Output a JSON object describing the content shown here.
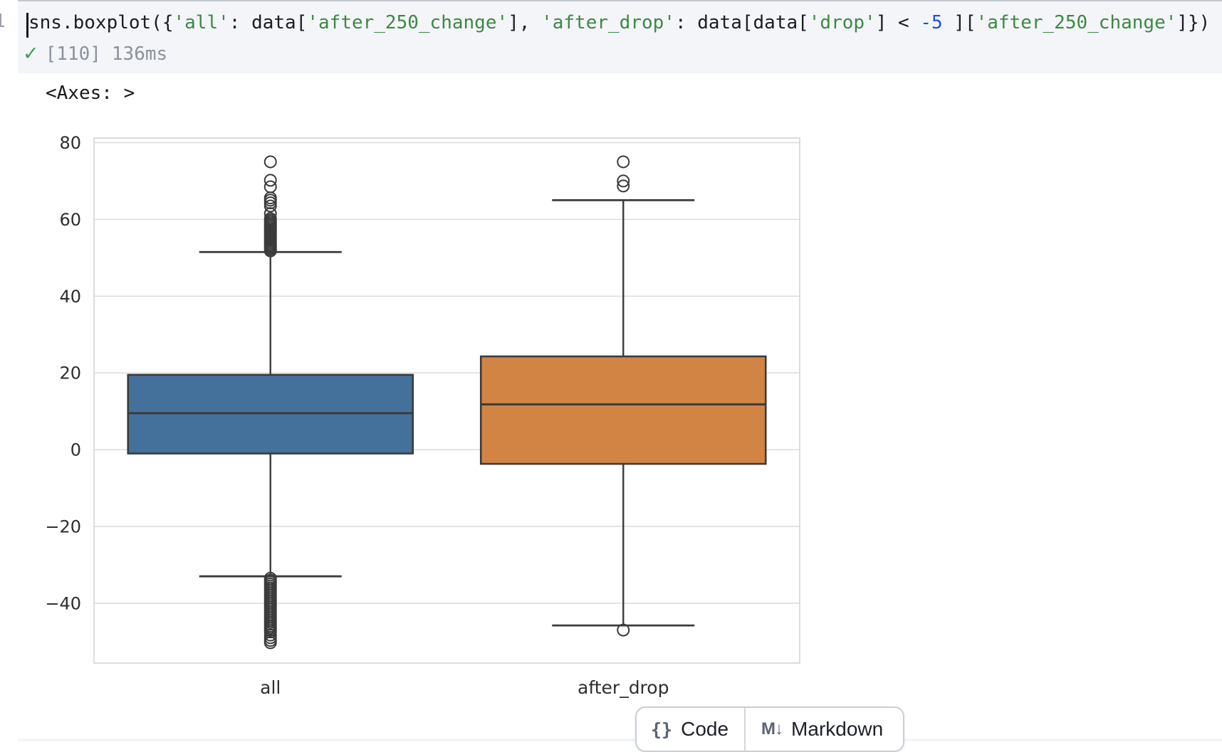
{
  "cell": {
    "line_number": "1",
    "code_tokens": [
      {
        "t": "sns.boxplot({",
        "c": "code"
      },
      {
        "t": "'all'",
        "c": "str"
      },
      {
        "t": ": data[",
        "c": "code"
      },
      {
        "t": "'after_250_change'",
        "c": "str"
      },
      {
        "t": "], ",
        "c": "code"
      },
      {
        "t": "'after_drop'",
        "c": "str"
      },
      {
        "t": ": data[data[",
        "c": "code"
      },
      {
        "t": "'drop'",
        "c": "str"
      },
      {
        "t": "] < ",
        "c": "code"
      },
      {
        "t": "-5",
        "c": "num"
      },
      {
        "t": " ][",
        "c": "code"
      },
      {
        "t": "'after_250_change'",
        "c": "str"
      },
      {
        "t": "]})",
        "c": "code"
      }
    ],
    "status": {
      "check": "✓",
      "execution_count": "[110]",
      "duration": "136ms"
    }
  },
  "output": {
    "text": "<Axes: >"
  },
  "chart_data": {
    "type": "boxplot",
    "title": "",
    "xlabel": "",
    "ylabel": "",
    "grid": "horizontal",
    "legend": "none",
    "ylim": [
      -55.6,
      81.2
    ],
    "yticks": [
      80,
      60,
      40,
      20,
      0,
      -20,
      -40
    ],
    "ytick_labels": [
      "80",
      "60",
      "40",
      "20",
      "0",
      "−20",
      "−40"
    ],
    "categories": [
      "all",
      "after_drop"
    ],
    "boxes": [
      {
        "label": "all",
        "color": "#44709c",
        "q1": -1.0,
        "median": 9.5,
        "q3": 19.5,
        "whisker_low": -33.0,
        "whisker_high": 51.5,
        "outliers_high": [
          51.8,
          52.2,
          52.6,
          53.0,
          53.4,
          53.8,
          54.2,
          54.6,
          55.0,
          55.4,
          55.8,
          56.2,
          56.6,
          57.0,
          57.4,
          57.8,
          58.2,
          58.6,
          59.0,
          59.4,
          59.8,
          60.2,
          61.5,
          63.5,
          64.3,
          65.0,
          65.6,
          68.5,
          70.2,
          75.0
        ],
        "outliers_low": [
          -33.5,
          -34.0,
          -34.5,
          -35.0,
          -35.5,
          -36.0,
          -36.5,
          -37.0,
          -37.5,
          -38.0,
          -38.5,
          -39.0,
          -39.5,
          -40.0,
          -40.5,
          -41.0,
          -41.5,
          -42.0,
          -42.5,
          -43.0,
          -43.5,
          -44.0,
          -44.5,
          -45.0,
          -45.5,
          -46.0,
          -46.5,
          -47.0,
          -47.5,
          -48.3,
          -49.0,
          -49.7,
          -50.3
        ]
      },
      {
        "label": "after_drop",
        "color": "#d28444",
        "q1": -3.7,
        "median": 11.8,
        "q3": 24.3,
        "whisker_low": -45.8,
        "whisker_high": 65.0,
        "outliers_high": [
          68.7,
          70.0,
          75.0
        ],
        "outliers_low": [
          -47.0
        ]
      }
    ]
  },
  "toolbar": {
    "code_icon": "{}",
    "code_label": "Code",
    "markdown_icon": "M↓",
    "markdown_label": "Markdown"
  }
}
